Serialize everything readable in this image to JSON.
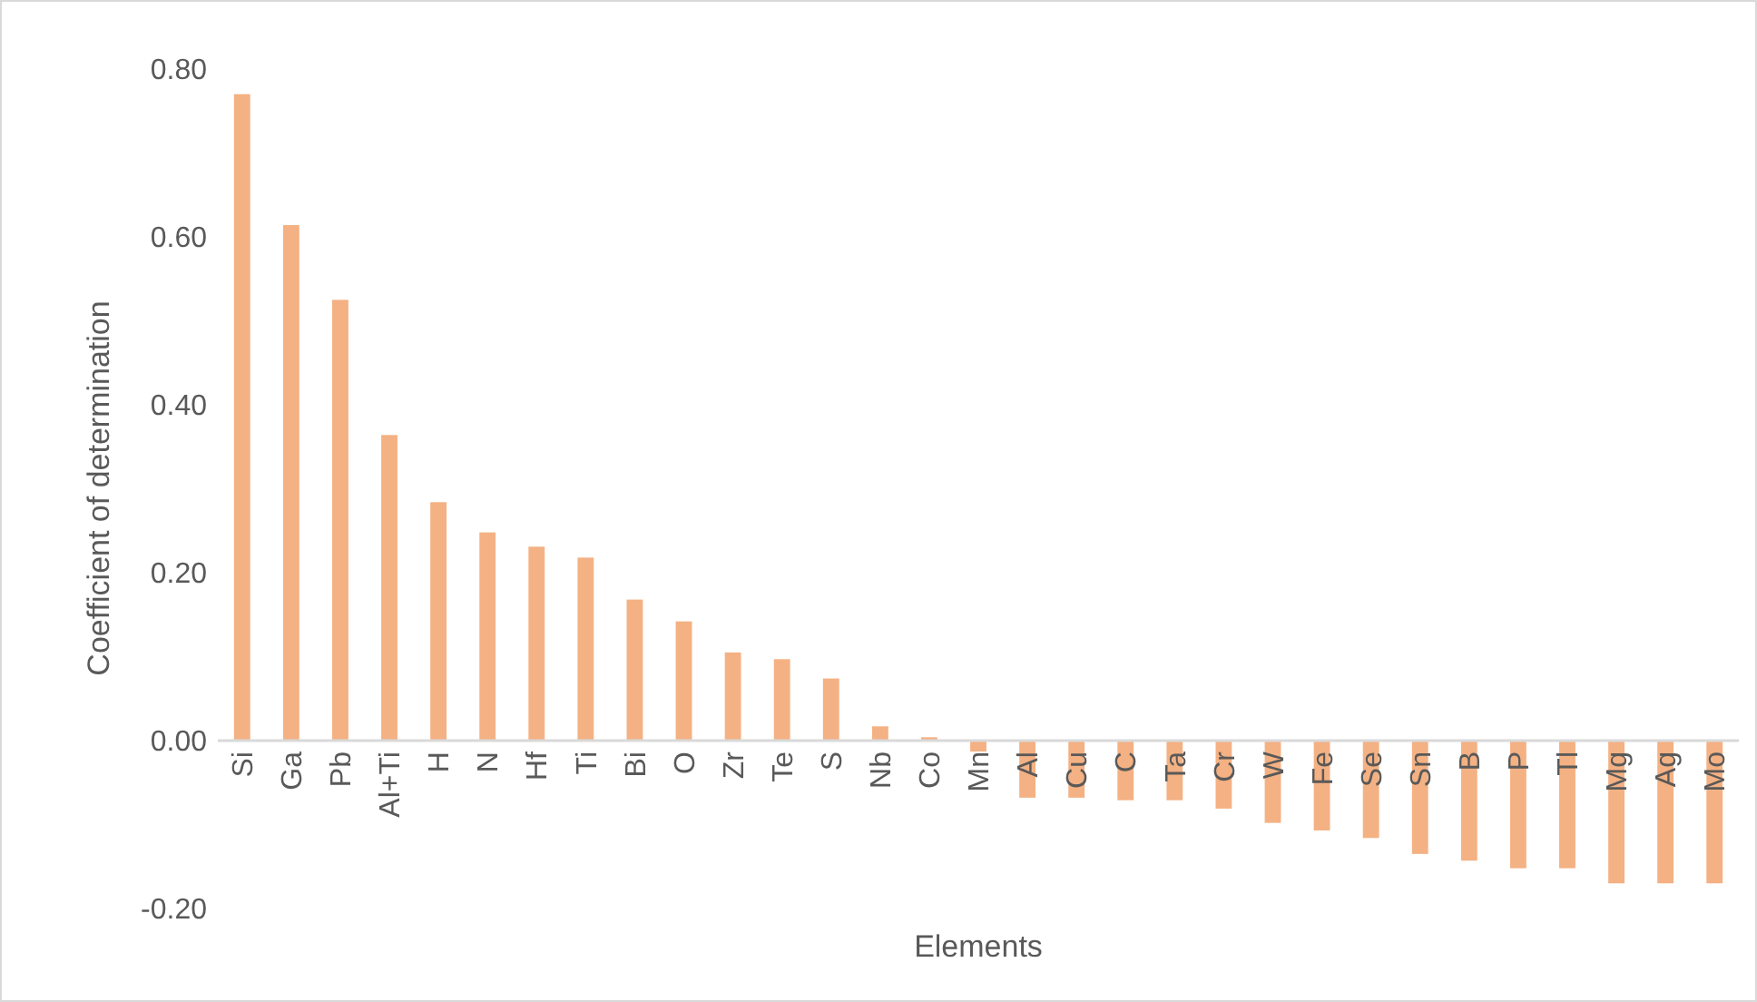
{
  "chart_data": {
    "type": "bar",
    "xlabel": "Elements",
    "ylabel": "Coefficient of determination",
    "categories": [
      "Si",
      "Ga",
      "Pb",
      "Al+Ti",
      "H",
      "N",
      "Hf",
      "Ti",
      "Bi",
      "O",
      "Zr",
      "Te",
      "S",
      "Nb",
      "Co",
      "Mn",
      "Al",
      "Cu",
      "C",
      "Ta",
      "Cr",
      "W",
      "Fe",
      "Se",
      "Sn",
      "B",
      "P",
      "Tl",
      "Mg",
      "Ag",
      "Mo"
    ],
    "values": [
      0.77,
      0.614,
      0.525,
      0.364,
      0.284,
      0.248,
      0.231,
      0.218,
      0.168,
      0.142,
      0.105,
      0.097,
      0.074,
      0.017,
      0.004,
      -0.013,
      -0.068,
      -0.068,
      -0.071,
      -0.071,
      -0.081,
      -0.098,
      -0.107,
      -0.116,
      -0.135,
      -0.143,
      -0.152,
      -0.152,
      -0.17,
      -0.17,
      -0.17
    ],
    "color": "#f4b183",
    "ylim": [
      -0.2,
      0.8
    ],
    "yticks": [
      {
        "value": -0.2,
        "label": "-0.20"
      },
      {
        "value": 0,
        "label": "0.00"
      },
      {
        "value": 0.2,
        "label": "0.20"
      },
      {
        "value": 0.4,
        "label": "0.40"
      },
      {
        "value": 0.6,
        "label": "0.60"
      },
      {
        "value": 0.8,
        "label": "0.80"
      }
    ],
    "data_labels": false
  }
}
